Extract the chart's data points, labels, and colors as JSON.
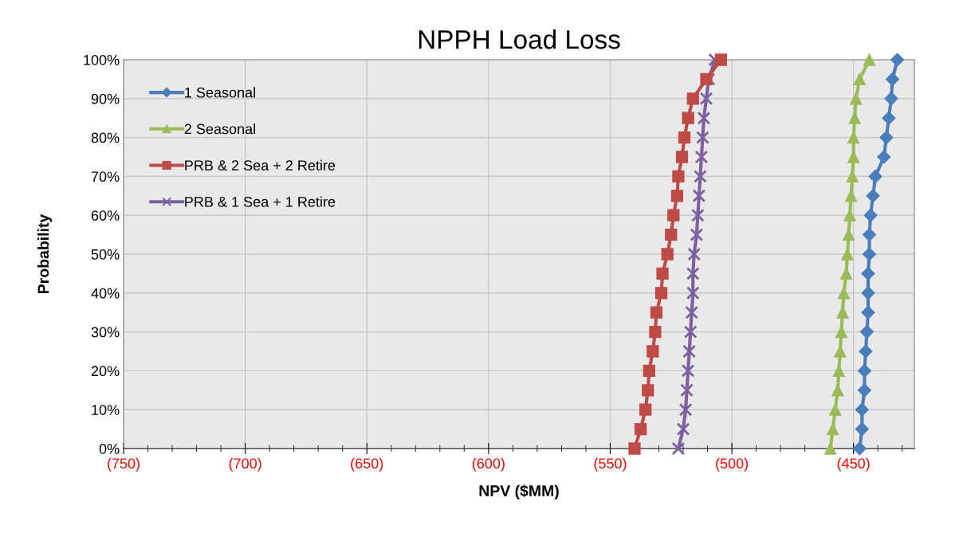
{
  "chart_data": {
    "type": "line",
    "title": "NPPH Load Loss",
    "xlabel": "NPV ($MM)",
    "ylabel": "Probability",
    "xlim": [
      -750,
      -425
    ],
    "xticks": [
      {
        "value": -750,
        "label": "(750)"
      },
      {
        "value": -700,
        "label": "(700)"
      },
      {
        "value": -650,
        "label": "(650)"
      },
      {
        "value": -600,
        "label": "(600)"
      },
      {
        "value": -550,
        "label": "(550)"
      },
      {
        "value": -500,
        "label": "(500)"
      },
      {
        "value": -450,
        "label": "(450)"
      }
    ],
    "ylim": [
      0,
      100
    ],
    "yticks": [
      {
        "value": 0,
        "label": "0%"
      },
      {
        "value": 10,
        "label": "10%"
      },
      {
        "value": 20,
        "label": "20%"
      },
      {
        "value": 30,
        "label": "30%"
      },
      {
        "value": 40,
        "label": "40%"
      },
      {
        "value": 50,
        "label": "50%"
      },
      {
        "value": 60,
        "label": "60%"
      },
      {
        "value": 70,
        "label": "70%"
      },
      {
        "value": 80,
        "label": "80%"
      },
      {
        "value": 90,
        "label": "90%"
      },
      {
        "value": 100,
        "label": "100%"
      }
    ],
    "grid": true,
    "legend": "top left",
    "series": [
      {
        "name": "1 Seasonal",
        "color": "#4a7ebb",
        "marker": "diamond",
        "x": [
          -447.5,
          -446.5,
          -446.5,
          -445.5,
          -445.5,
          -445,
          -444.5,
          -444,
          -444,
          -444,
          -443.5,
          -443.5,
          -443,
          -442,
          -441,
          -437.5,
          -436.5,
          -435.5,
          -434.5,
          -434,
          -432
        ],
        "values": [
          0,
          5,
          10,
          15,
          20,
          25,
          30,
          35,
          40,
          45,
          50,
          55,
          60,
          65,
          70,
          75,
          80,
          85,
          90,
          95,
          100
        ]
      },
      {
        "name": "2 Seasonal",
        "color": "#9bbb59",
        "marker": "triangle",
        "x": [
          -459.5,
          -458.5,
          -457.5,
          -456.5,
          -456,
          -455.5,
          -455,
          -454.5,
          -454,
          -453,
          -452.5,
          -452,
          -451.5,
          -451,
          -450.5,
          -450,
          -450,
          -449.5,
          -449,
          -447.5,
          -443.5
        ],
        "values": [
          0,
          5,
          10,
          15,
          20,
          25,
          30,
          35,
          40,
          45,
          50,
          55,
          60,
          65,
          70,
          75,
          80,
          85,
          90,
          95,
          100
        ]
      },
      {
        "name": "PRB & 2 Sea + 2 Retire",
        "color": "#be4b48",
        "marker": "square",
        "x": [
          -540,
          -537.5,
          -535.5,
          -534.5,
          -534,
          -532.5,
          -531.5,
          -531,
          -529,
          -528.5,
          -526.5,
          -525,
          -524,
          -522.5,
          -522,
          -520.5,
          -519.5,
          -518,
          -516,
          -510.5,
          -504.5
        ],
        "values": [
          0,
          5,
          10,
          15,
          20,
          25,
          30,
          35,
          40,
          45,
          50,
          55,
          60,
          65,
          70,
          75,
          80,
          85,
          90,
          95,
          100
        ]
      },
      {
        "name": "PRB & 1 Sea + 1 Retire",
        "color": "#7d60a0",
        "marker": "cross",
        "x": [
          -522,
          -520,
          -519,
          -518.5,
          -518,
          -517.5,
          -517,
          -516.5,
          -516,
          -516,
          -515.5,
          -514.5,
          -514,
          -513.5,
          -513,
          -512.5,
          -512,
          -511.5,
          -510.5,
          -509.5,
          -507
        ],
        "values": [
          0,
          5,
          10,
          15,
          20,
          25,
          30,
          35,
          40,
          45,
          50,
          55,
          60,
          65,
          70,
          75,
          80,
          85,
          90,
          95,
          100
        ]
      }
    ]
  }
}
